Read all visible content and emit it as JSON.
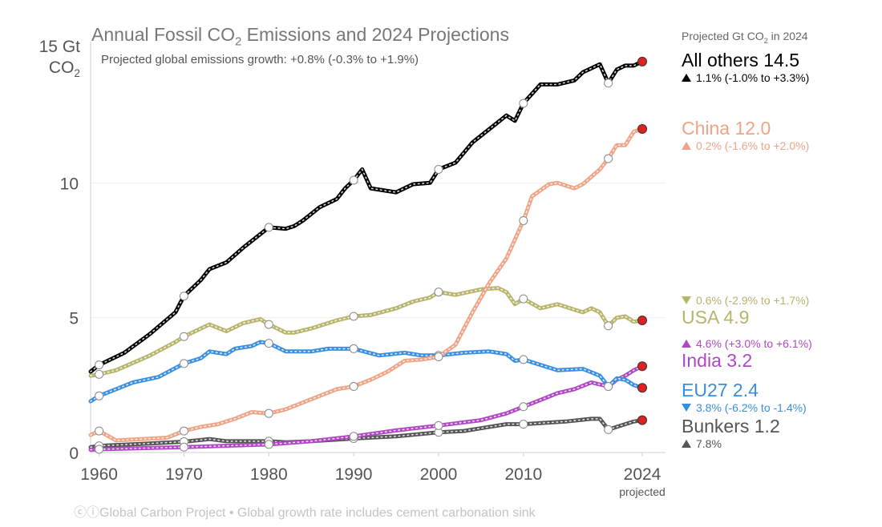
{
  "title_main": "Annual Fossil CO",
  "title_sub": "2",
  "title_rest": " Emissions and 2024 Projections",
  "subtitle": "Projected global emissions growth: +0.8% (-0.3% to +1.9%)",
  "y_unit_line1": "15 Gt",
  "y_unit_line2_main": "CO",
  "y_unit_line2_sub": "2",
  "legend_header_main": "Projected Gt CO",
  "legend_header_sub": "2",
  "legend_header_rest": " in 2024",
  "legend": {
    "others": {
      "name": "All others 14.5",
      "rate": "1.1% (-1.0% to +3.3%)",
      "dir": "up",
      "color": "#000000"
    },
    "china": {
      "name": "China 12.0",
      "rate": "0.2% (-1.6% to +2.0%)",
      "dir": "up",
      "color": "#f0a487"
    },
    "usa": {
      "name": "USA 4.9",
      "rate": "0.6% (-2.9% to +1.7%)",
      "dir": "down",
      "color": "#b7b46c"
    },
    "india": {
      "name": "India 3.2",
      "rate": "4.6% (+3.0% to +6.1%)",
      "dir": "up",
      "color": "#b048c6"
    },
    "eu27": {
      "name": "EU27 2.4",
      "rate": "3.8% (-6.2% to -1.4%)",
      "dir": "down",
      "color": "#3a8ee0"
    },
    "bunkers": {
      "name": "Bunkers 1.2",
      "rate": "7.8%",
      "dir": "up",
      "color": "#555555"
    }
  },
  "footer": "ⓒⓘGlobal Carbon Project  •  Global growth rate includes cement carbonation sink",
  "chart_data": {
    "type": "line",
    "title": "Annual Fossil CO2 Emissions and 2024 Projections",
    "ylabel": "15 Gt CO2",
    "ylim": [
      0,
      15
    ],
    "xlim": [
      1959,
      2024
    ],
    "x_ticks": [
      1960,
      1970,
      1980,
      1990,
      2000,
      2010,
      2024
    ],
    "x_tick_labels": [
      "1960",
      "1970",
      "1980",
      "1990",
      "2000",
      "2010",
      "2024"
    ],
    "x_tick_note": "projected",
    "y_ticks": [
      0,
      5,
      10
    ],
    "y_tick_labels": [
      "0",
      "5",
      "10"
    ],
    "grid": "horizontal",
    "projection_year": 2024,
    "projection_marker_color": "#dd2222",
    "series": [
      {
        "key": "others",
        "name": "All others",
        "color": "#000000",
        "points": [
          [
            1959,
            3.0
          ],
          [
            1960,
            3.25
          ],
          [
            1963,
            3.7
          ],
          [
            1966,
            4.4
          ],
          [
            1969,
            5.2
          ],
          [
            1970,
            5.8
          ],
          [
            1972,
            6.4
          ],
          [
            1973,
            6.8
          ],
          [
            1975,
            7.05
          ],
          [
            1977,
            7.6
          ],
          [
            1979,
            8.1
          ],
          [
            1980,
            8.35
          ],
          [
            1982,
            8.3
          ],
          [
            1983,
            8.4
          ],
          [
            1984,
            8.6
          ],
          [
            1986,
            9.1
          ],
          [
            1988,
            9.4
          ],
          [
            1989,
            9.8
          ],
          [
            1990,
            10.1
          ],
          [
            1991,
            10.5
          ],
          [
            1992,
            9.8
          ],
          [
            1995,
            9.65
          ],
          [
            1997,
            9.95
          ],
          [
            1999,
            10.0
          ],
          [
            2000,
            10.5
          ],
          [
            2002,
            10.75
          ],
          [
            2004,
            11.5
          ],
          [
            2006,
            12.0
          ],
          [
            2008,
            12.5
          ],
          [
            2009,
            12.3
          ],
          [
            2010,
            12.95
          ],
          [
            2012,
            13.65
          ],
          [
            2014,
            13.65
          ],
          [
            2016,
            13.8
          ],
          [
            2017,
            14.1
          ],
          [
            2019,
            14.4
          ],
          [
            2020,
            13.7
          ],
          [
            2021,
            14.2
          ],
          [
            2022,
            14.35
          ],
          [
            2023,
            14.35
          ],
          [
            2024,
            14.5
          ]
        ],
        "circles": [
          1960,
          1970,
          1980,
          1990,
          2000,
          2010,
          2020
        ]
      },
      {
        "key": "china",
        "name": "China",
        "color": "#f0a487",
        "points": [
          [
            1959,
            0.65
          ],
          [
            1960,
            0.8
          ],
          [
            1962,
            0.45
          ],
          [
            1965,
            0.5
          ],
          [
            1968,
            0.55
          ],
          [
            1970,
            0.8
          ],
          [
            1972,
            0.95
          ],
          [
            1974,
            1.05
          ],
          [
            1976,
            1.25
          ],
          [
            1978,
            1.5
          ],
          [
            1980,
            1.45
          ],
          [
            1982,
            1.6
          ],
          [
            1984,
            1.85
          ],
          [
            1986,
            2.1
          ],
          [
            1988,
            2.35
          ],
          [
            1990,
            2.45
          ],
          [
            1992,
            2.7
          ],
          [
            1994,
            3.0
          ],
          [
            1996,
            3.4
          ],
          [
            1998,
            3.45
          ],
          [
            2000,
            3.55
          ],
          [
            2002,
            4.0
          ],
          [
            2004,
            5.2
          ],
          [
            2006,
            6.3
          ],
          [
            2008,
            7.2
          ],
          [
            2010,
            8.6
          ],
          [
            2011,
            9.5
          ],
          [
            2013,
            9.95
          ],
          [
            2014,
            10.0
          ],
          [
            2016,
            9.8
          ],
          [
            2017,
            9.95
          ],
          [
            2019,
            10.5
          ],
          [
            2020,
            10.9
          ],
          [
            2021,
            11.4
          ],
          [
            2022,
            11.4
          ],
          [
            2023,
            11.9
          ],
          [
            2024,
            12.0
          ]
        ],
        "circles": [
          1960,
          1970,
          1980,
          1990,
          2000,
          2010,
          2020
        ]
      },
      {
        "key": "usa",
        "name": "USA",
        "color": "#b7b46c",
        "points": [
          [
            1959,
            2.85
          ],
          [
            1960,
            2.9
          ],
          [
            1962,
            3.05
          ],
          [
            1966,
            3.6
          ],
          [
            1969,
            4.1
          ],
          [
            1970,
            4.3
          ],
          [
            1973,
            4.75
          ],
          [
            1975,
            4.5
          ],
          [
            1977,
            4.8
          ],
          [
            1979,
            4.95
          ],
          [
            1980,
            4.75
          ],
          [
            1982,
            4.45
          ],
          [
            1983,
            4.45
          ],
          [
            1985,
            4.6
          ],
          [
            1988,
            4.9
          ],
          [
            1990,
            5.05
          ],
          [
            1992,
            5.1
          ],
          [
            1995,
            5.35
          ],
          [
            1997,
            5.6
          ],
          [
            1999,
            5.75
          ],
          [
            2000,
            5.95
          ],
          [
            2002,
            5.85
          ],
          [
            2005,
            6.05
          ],
          [
            2007,
            6.1
          ],
          [
            2008,
            5.95
          ],
          [
            2009,
            5.5
          ],
          [
            2010,
            5.7
          ],
          [
            2012,
            5.35
          ],
          [
            2014,
            5.5
          ],
          [
            2016,
            5.3
          ],
          [
            2017,
            5.2
          ],
          [
            2018,
            5.35
          ],
          [
            2019,
            5.2
          ],
          [
            2020,
            4.7
          ],
          [
            2021,
            5.0
          ],
          [
            2022,
            5.05
          ],
          [
            2023,
            4.85
          ],
          [
            2024,
            4.9
          ]
        ],
        "circles": [
          1960,
          1970,
          1980,
          1990,
          2000,
          2010,
          2020
        ]
      },
      {
        "key": "india",
        "name": "India",
        "color": "#b048c6",
        "points": [
          [
            1959,
            0.1
          ],
          [
            1960,
            0.12
          ],
          [
            1970,
            0.2
          ],
          [
            1980,
            0.3
          ],
          [
            1985,
            0.42
          ],
          [
            1990,
            0.6
          ],
          [
            1995,
            0.82
          ],
          [
            2000,
            1.0
          ],
          [
            2005,
            1.2
          ],
          [
            2008,
            1.45
          ],
          [
            2010,
            1.7
          ],
          [
            2012,
            1.95
          ],
          [
            2014,
            2.2
          ],
          [
            2016,
            2.35
          ],
          [
            2018,
            2.6
          ],
          [
            2020,
            2.45
          ],
          [
            2021,
            2.7
          ],
          [
            2022,
            2.85
          ],
          [
            2023,
            3.05
          ],
          [
            2024,
            3.2
          ]
        ],
        "circles": [
          1960,
          1970,
          1980,
          1990,
          2000,
          2010,
          2020
        ]
      },
      {
        "key": "eu27",
        "name": "EU27",
        "color": "#3a8ee0",
        "points": [
          [
            1959,
            1.9
          ],
          [
            1960,
            2.1
          ],
          [
            1962,
            2.35
          ],
          [
            1964,
            2.6
          ],
          [
            1967,
            2.8
          ],
          [
            1970,
            3.3
          ],
          [
            1972,
            3.5
          ],
          [
            1973,
            3.75
          ],
          [
            1975,
            3.65
          ],
          [
            1976,
            3.85
          ],
          [
            1978,
            3.95
          ],
          [
            1979,
            4.1
          ],
          [
            1980,
            4.05
          ],
          [
            1982,
            3.75
          ],
          [
            1985,
            3.75
          ],
          [
            1987,
            3.85
          ],
          [
            1990,
            3.85
          ],
          [
            1993,
            3.6
          ],
          [
            1996,
            3.7
          ],
          [
            1998,
            3.6
          ],
          [
            2000,
            3.6
          ],
          [
            2003,
            3.7
          ],
          [
            2006,
            3.75
          ],
          [
            2008,
            3.65
          ],
          [
            2009,
            3.4
          ],
          [
            2010,
            3.45
          ],
          [
            2012,
            3.25
          ],
          [
            2014,
            3.05
          ],
          [
            2017,
            3.1
          ],
          [
            2019,
            2.85
          ],
          [
            2020,
            2.45
          ],
          [
            2021,
            2.75
          ],
          [
            2022,
            2.7
          ],
          [
            2023,
            2.5
          ],
          [
            2024,
            2.4
          ]
        ],
        "circles": [
          1960,
          1970,
          1980,
          1990,
          2000,
          2010,
          2020
        ]
      },
      {
        "key": "bunkers",
        "name": "Bunkers",
        "color": "#555555",
        "points": [
          [
            1959,
            0.2
          ],
          [
            1960,
            0.25
          ],
          [
            1965,
            0.32
          ],
          [
            1970,
            0.4
          ],
          [
            1973,
            0.5
          ],
          [
            1975,
            0.42
          ],
          [
            1980,
            0.42
          ],
          [
            1982,
            0.38
          ],
          [
            1985,
            0.42
          ],
          [
            1990,
            0.52
          ],
          [
            1995,
            0.6
          ],
          [
            2000,
            0.75
          ],
          [
            2003,
            0.8
          ],
          [
            2005,
            0.9
          ],
          [
            2008,
            1.05
          ],
          [
            2010,
            1.05
          ],
          [
            2015,
            1.15
          ],
          [
            2018,
            1.25
          ],
          [
            2019,
            1.25
          ],
          [
            2020,
            0.85
          ],
          [
            2021,
            0.95
          ],
          [
            2022,
            1.05
          ],
          [
            2023,
            1.15
          ],
          [
            2024,
            1.2
          ]
        ],
        "circles": [
          1960,
          1970,
          1980,
          1990,
          2000,
          2010,
          2020
        ]
      }
    ]
  }
}
